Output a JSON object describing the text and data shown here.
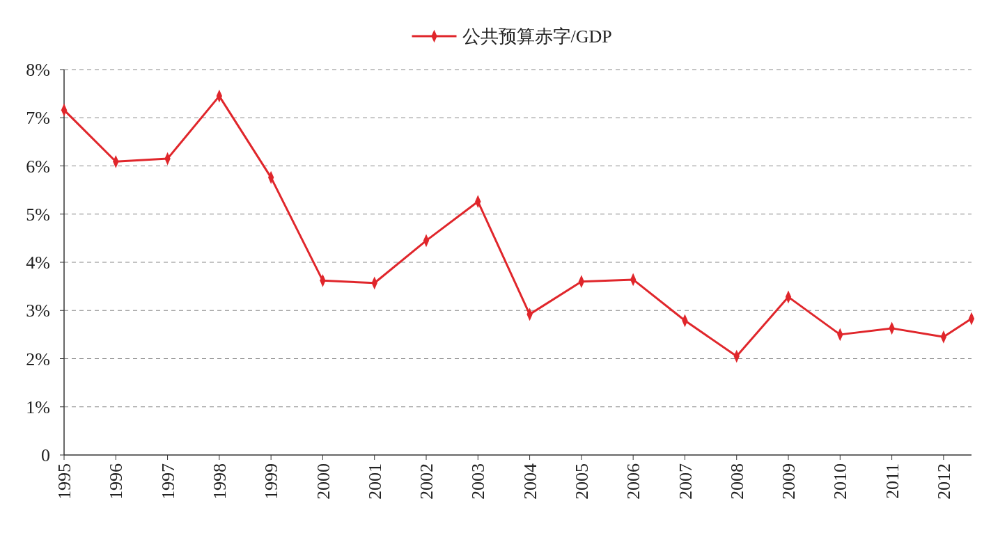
{
  "chart_data": {
    "type": "line",
    "x": [
      1995,
      1996,
      1997,
      1998,
      1999,
      2000,
      2001,
      2002,
      2003,
      2004,
      2005,
      2006,
      2007,
      2008,
      2009,
      2010,
      2011,
      2012,
      2012.54
    ],
    "series": [
      {
        "name": "公共预算赤字/GDP",
        "color": "#e0262b",
        "values": [
          7.16,
          6.09,
          6.15,
          7.45,
          5.76,
          3.62,
          3.57,
          4.45,
          5.26,
          2.92,
          3.6,
          3.64,
          2.79,
          2.05,
          3.28,
          2.5,
          2.63,
          2.45,
          2.83
        ]
      }
    ],
    "xlim": [
      1995,
      2012.54
    ],
    "xticks": [
      1995,
      1996,
      1997,
      1998,
      1999,
      2000,
      2001,
      2002,
      2003,
      2004,
      2005,
      2006,
      2007,
      2008,
      2009,
      2010,
      2011,
      2012
    ],
    "ylim": [
      0,
      8
    ],
    "yticks": [
      0,
      {
        "value": 1,
        "label": "1%"
      },
      {
        "value": 2,
        "label": "2%"
      },
      {
        "value": 3,
        "label": "3%"
      },
      {
        "value": 4,
        "label": "4%"
      },
      {
        "value": 5,
        "label": "5%"
      },
      {
        "value": 6,
        "label": "6%"
      },
      {
        "value": 7,
        "label": "7%"
      },
      {
        "value": 8,
        "label": "8%"
      }
    ],
    "grid": "y",
    "legend": "top",
    "marker": "diamond",
    "line_style": "solid"
  }
}
